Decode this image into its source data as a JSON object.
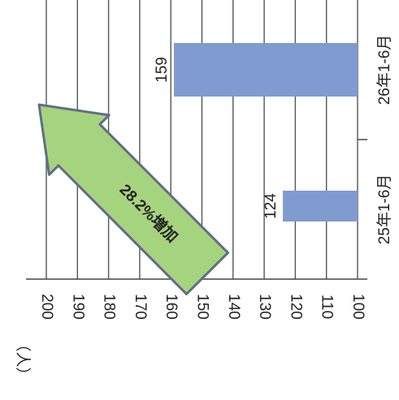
{
  "chart_data": {
    "type": "bar",
    "orientation": "horizontal",
    "categories": [
      "26年1-6月",
      "25年1-6月"
    ],
    "values": [
      159,
      124
    ],
    "unit_label": "（人）",
    "value_axis": {
      "min": 100,
      "max": 200,
      "ticks": [
        100,
        110,
        120,
        130,
        140,
        150,
        160,
        170,
        180,
        190,
        200
      ]
    },
    "data_labels": [
      "159",
      "124"
    ],
    "annotation": "28.2%増加",
    "grid": true,
    "colors": {
      "bar": "#7f9bd0",
      "arrow_fill": "#a6d47e",
      "arrow_stroke": "#5f6e86",
      "grid": "#555555"
    }
  }
}
